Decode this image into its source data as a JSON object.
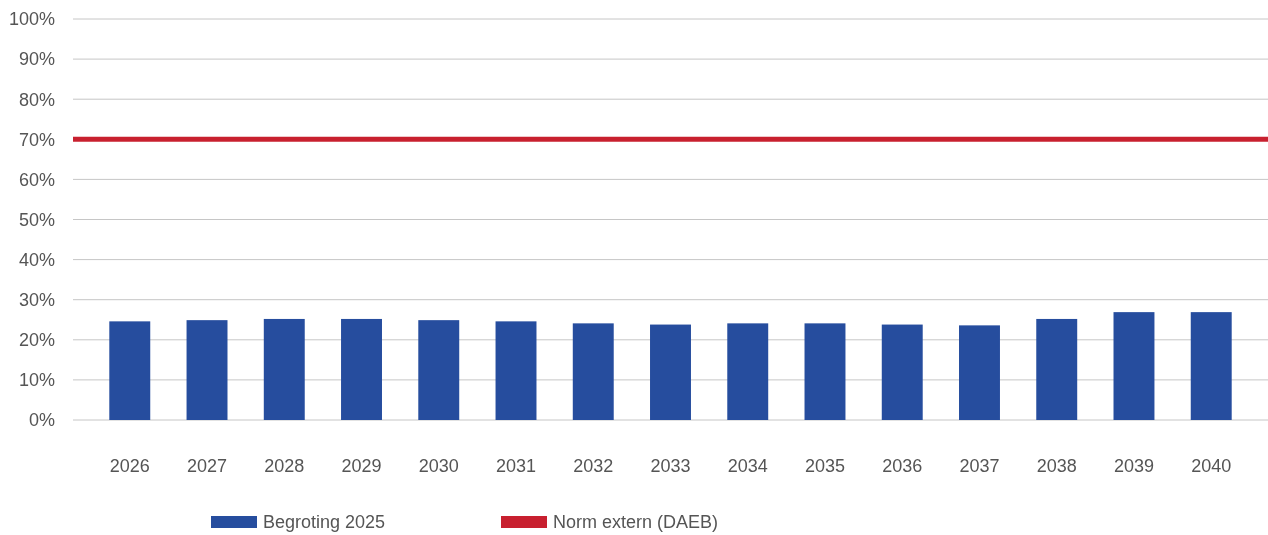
{
  "chart_data": {
    "type": "bar",
    "categories": [
      "2026",
      "2027",
      "2028",
      "2029",
      "2030",
      "2031",
      "2032",
      "2033",
      "2034",
      "2035",
      "2036",
      "2037",
      "2038",
      "2039",
      "2040"
    ],
    "series": [
      {
        "name": "Begroting 2025",
        "color": "#264d9e",
        "values": [
          24.6,
          24.9,
          25.2,
          25.2,
          24.9,
          24.6,
          24.1,
          23.8,
          24.1,
          24.1,
          23.8,
          23.6,
          25.2,
          26.9,
          26.9
        ]
      }
    ],
    "ylim": [
      0,
      100
    ],
    "yticks": [
      {
        "value": 0,
        "label": "0%"
      },
      {
        "value": 10,
        "label": "10%"
      },
      {
        "value": 20,
        "label": "20%"
      },
      {
        "value": 30,
        "label": "30%"
      },
      {
        "value": 40,
        "label": "40%"
      },
      {
        "value": 50,
        "label": "50%"
      },
      {
        "value": 60,
        "label": "60%"
      },
      {
        "value": 70,
        "label": "70%"
      },
      {
        "value": 80,
        "label": "80%"
      },
      {
        "value": 90,
        "label": "90%"
      },
      {
        "value": 100,
        "label": "100%"
      }
    ],
    "ref_lines": [
      {
        "axis": "y",
        "value": 70,
        "label": "Norm extern (DAEB)",
        "color": "#c8202f",
        "line_style": "solid"
      }
    ],
    "grid": "y",
    "legend": "bottom"
  }
}
